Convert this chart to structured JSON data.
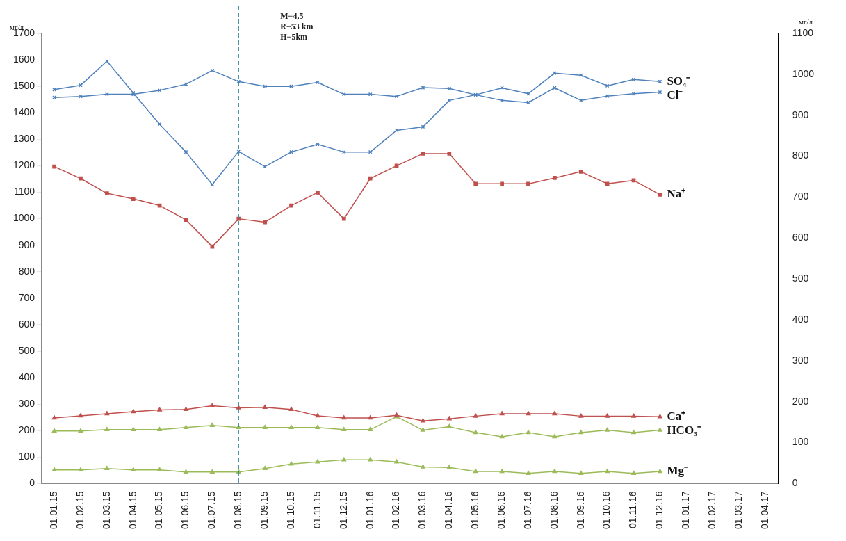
{
  "chart_data": {
    "type": "line",
    "ylabel": "мг/л",
    "y2label": "мг/л",
    "categories": [
      "01.01.15",
      "01.02.15",
      "01.03.15",
      "01.04.15",
      "01.05.15",
      "01.06.15",
      "01.07.15",
      "01.08.15",
      "01.09.15",
      "01.10.15",
      "01.11.15",
      "01.12.15",
      "01.01.16",
      "01.02.16",
      "01.03.16",
      "01.04.16",
      "01.05.16",
      "01.06.16",
      "01.07.16",
      "01.08.16",
      "01.09.16",
      "01.10.16",
      "01.11.16",
      "01.12.16",
      "01.01.17",
      "01.02.17",
      "01.03.17",
      "01.04.17"
    ],
    "series": [
      {
        "name": "Cl⁻",
        "color": "#4f81bd",
        "marker": "cross",
        "values": [
          1458,
          1462,
          1470,
          1470,
          1485,
          1508,
          1560,
          1518,
          1500,
          1500,
          1515,
          1470,
          1470,
          1462,
          1495,
          1492,
          1468,
          1447,
          1439,
          1494,
          1447,
          1463,
          1472,
          1478,
          null,
          null,
          null,
          null
        ]
      },
      {
        "name": "SO₄⁻",
        "color": "#4f81bd",
        "marker": "cross",
        "values": [
          1488,
          1504,
          1595,
          1475,
          1357,
          1252,
          1129,
          1254,
          1197,
          1252,
          1281,
          1252,
          1252,
          1334,
          1347,
          1447,
          1468,
          1494,
          1472,
          1550,
          1542,
          1502,
          1526,
          1518,
          null,
          null,
          null,
          null
        ]
      },
      {
        "name": "Na⁺",
        "color": "#c0504d",
        "marker": "square",
        "values": [
          1197,
          1152,
          1096,
          1075,
          1050,
          996,
          895,
          1000,
          987,
          1050,
          1099,
          1000,
          1152,
          1200,
          1246,
          1246,
          1132,
          1132,
          1132,
          1154,
          1178,
          1132,
          1145,
          1091,
          null,
          null,
          null,
          null
        ]
      },
      {
        "name": "Ca⁺",
        "color": "#c0504d",
        "marker": "triangle",
        "values": [
          248,
          256,
          264,
          272,
          278,
          280,
          294,
          286,
          288,
          280,
          256,
          248,
          248,
          258,
          237,
          245,
          255,
          264,
          264,
          264,
          255,
          255,
          255,
          253,
          null,
          null,
          null,
          null
        ]
      },
      {
        "name": "HCO₃⁻",
        "color": "#9bbb59",
        "marker": "triangle",
        "values": [
          199,
          199,
          204,
          204,
          204,
          212,
          220,
          212,
          212,
          212,
          212,
          204,
          204,
          253,
          202,
          215,
          193,
          177,
          193,
          177,
          193,
          202,
          193,
          202,
          null,
          null,
          null,
          null
        ]
      },
      {
        "name": "Mg⁻",
        "color": "#9bbb59",
        "marker": "triangle",
        "values": [
          52,
          52,
          57,
          52,
          52,
          44,
          44,
          44,
          57,
          74,
          82,
          90,
          90,
          82,
          63,
          61,
          46,
          46,
          39,
          46,
          39,
          46,
          39,
          46,
          null,
          null,
          null,
          null
        ]
      }
    ],
    "ylim": [
      0,
      1700
    ],
    "yticks": [
      0,
      100,
      200,
      300,
      400,
      500,
      600,
      700,
      800,
      900,
      1000,
      1100,
      1200,
      1300,
      1400,
      1500,
      1600,
      1700
    ],
    "y2lim": [
      0,
      1100
    ],
    "y2ticks": [
      0,
      100,
      200,
      300,
      400,
      500,
      600,
      700,
      800,
      900,
      1000,
      1100
    ],
    "ref_lines": [
      {
        "axis": "x",
        "value": "01.08.15",
        "color": "#31859c",
        "line_style": "dashed"
      }
    ],
    "annotations": [
      "M−4,5",
      "R−53 km",
      "H−5km"
    ],
    "grid": false,
    "legend": false,
    "line_style": "solid"
  }
}
